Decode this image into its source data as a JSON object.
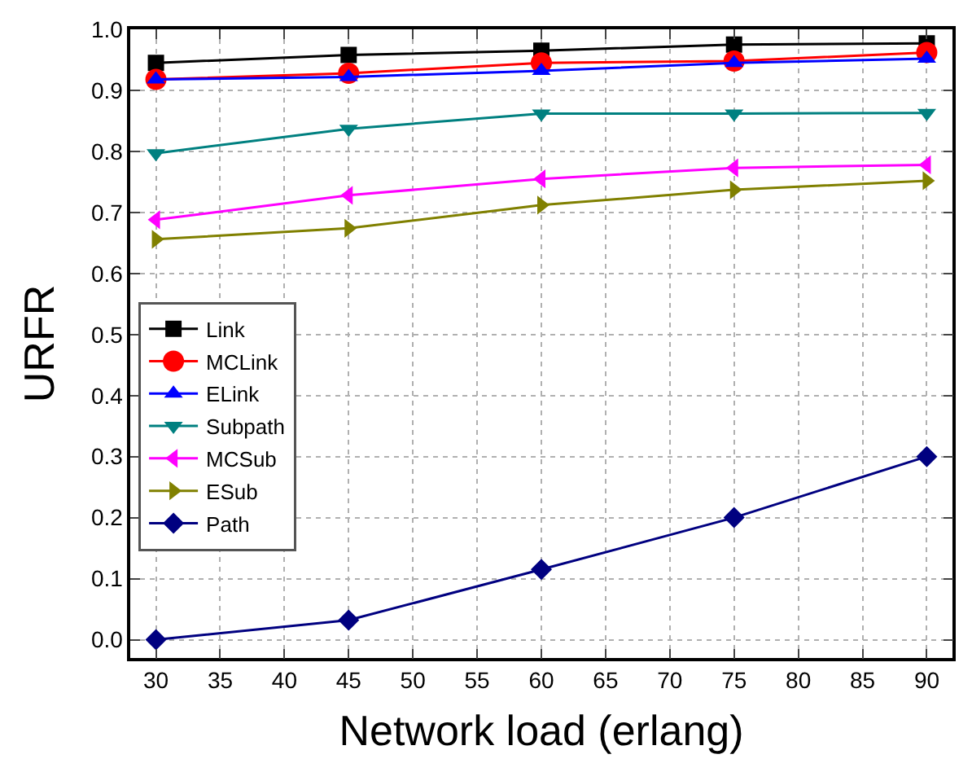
{
  "chart_data": {
    "type": "line",
    "xlabel": "Network load (erlang)",
    "ylabel": "URFR",
    "x": [
      30,
      45,
      60,
      75,
      90
    ],
    "series": [
      {
        "name": "Link",
        "color": "#000000",
        "marker": "square",
        "values": [
          0.945,
          0.958,
          0.965,
          0.975,
          0.977
        ]
      },
      {
        "name": "MCLink",
        "color": "#ff0000",
        "marker": "circle",
        "values": [
          0.918,
          0.928,
          0.945,
          0.948,
          0.962
        ]
      },
      {
        "name": "ELink",
        "color": "#0000ff",
        "marker": "triangle-up",
        "values": [
          0.918,
          0.922,
          0.932,
          0.945,
          0.952
        ]
      },
      {
        "name": "Subpath",
        "color": "#008080",
        "marker": "triangle-down",
        "values": [
          0.797,
          0.837,
          0.862,
          0.862,
          0.863
        ]
      },
      {
        "name": "MCSub",
        "color": "#ff00ff",
        "marker": "triangle-left",
        "values": [
          0.688,
          0.728,
          0.755,
          0.773,
          0.778
        ]
      },
      {
        "name": "ESub",
        "color": "#808000",
        "marker": "triangle-right",
        "values": [
          0.656,
          0.674,
          0.712,
          0.737,
          0.752
        ]
      },
      {
        "name": "Path",
        "color": "#000080",
        "marker": "diamond",
        "values": [
          0.0,
          0.032,
          0.115,
          0.2,
          0.3
        ]
      }
    ],
    "xlim": [
      28,
      92
    ],
    "xticks": [
      30,
      35,
      40,
      45,
      50,
      55,
      60,
      65,
      70,
      75,
      80,
      85,
      90
    ],
    "ylim": [
      -0.03,
      1.0
    ],
    "yticks": [
      {
        "value": 0,
        "label": "0.0"
      },
      0.1,
      0.2,
      0.3,
      0.4,
      0.5,
      0.6,
      0.7,
      0.8,
      0.9,
      {
        "value": 1,
        "label": "1.0"
      }
    ],
    "grid": true,
    "legend": "left",
    "line_style": "solid"
  }
}
